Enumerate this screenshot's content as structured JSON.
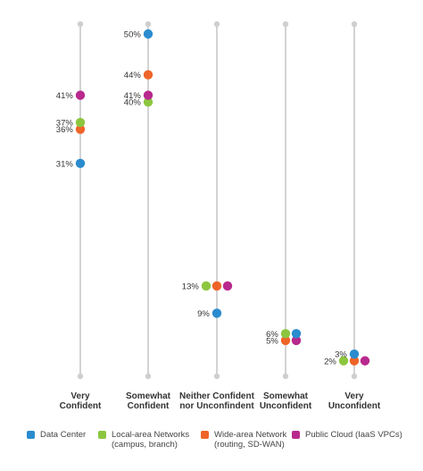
{
  "chart_data": {
    "type": "dot",
    "categories": [
      "Very\nConfident",
      "Somewhat\nConfident",
      "Neither Confident\nnor Unconfindent",
      "Somewhat\nUnconfident",
      "Very\nUnconfident"
    ],
    "ylim": [
      0,
      55
    ],
    "grid": false,
    "legend_placement": "bottom",
    "series": [
      {
        "name": "Data Center",
        "color": "#2a8ccf",
        "values": [
          31,
          50,
          9,
          6,
          3
        ]
      },
      {
        "name": "Local-area Networks\n(campus, branch)",
        "color": "#8cc63f",
        "values": [
          37,
          40,
          13,
          6,
          2
        ]
      },
      {
        "name": "Wide-area Network\n(routing, SD-WAN)",
        "color": "#ef6428",
        "values": [
          36,
          44,
          13,
          5,
          2
        ]
      },
      {
        "name": "Public Cloud (IaaS VPCs)",
        "color": "#b8298e",
        "values": [
          41,
          41,
          13,
          5,
          2
        ]
      }
    ]
  }
}
